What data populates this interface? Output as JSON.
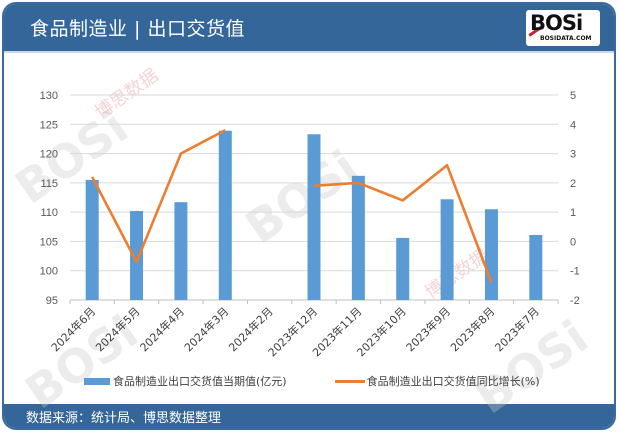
{
  "header": {
    "title": "食品制造业 | 出口交货值",
    "logo_text": "BOSi",
    "logo_sub": "BOSIDATA.COM"
  },
  "footer": {
    "source": "数据来源：统计局、博思数据整理"
  },
  "watermark": {
    "brand": "BOSi",
    "cn": "博思数据",
    "en": "BosiData Research"
  },
  "colors": {
    "header_bg": "#356699",
    "bar": "#5b9bd5",
    "line": "#ed7d31",
    "grid": "#d9d9d9"
  },
  "chart_data": {
    "type": "bar+line",
    "title": "食品制造业 | 出口交货值",
    "categories": [
      "2024年6月",
      "2024年5月",
      "2024年4月",
      "2024年3月",
      "2024年2月",
      "2023年12月",
      "2023年11月",
      "2023年10月",
      "2023年9月",
      "2023年8月",
      "2023年7月"
    ],
    "series": [
      {
        "name": "食品制造业出口交货值当期值(亿元)",
        "type": "bar",
        "axis": "left",
        "values": [
          115.5,
          110.2,
          111.7,
          123.9,
          null,
          123.3,
          116.2,
          105.6,
          112.2,
          110.5,
          106.1
        ]
      },
      {
        "name": "食品制造业出口交货值同比增长(%)",
        "type": "line",
        "axis": "right",
        "values": [
          2.2,
          -0.7,
          3.0,
          3.8,
          null,
          1.9,
          2.0,
          1.4,
          2.6,
          -1.4,
          null
        ]
      }
    ],
    "left_axis": {
      "min": 95,
      "max": 130,
      "step": 5,
      "ticks": [
        "130",
        "125",
        "120",
        "115",
        "110",
        "105",
        "100",
        "95"
      ]
    },
    "right_axis": {
      "min": -2,
      "max": 5,
      "step": 1,
      "ticks": [
        "5",
        "4",
        "3",
        "2",
        "1",
        "0",
        "-1",
        "-2"
      ]
    },
    "grid": true,
    "legend_position": "bottom"
  }
}
